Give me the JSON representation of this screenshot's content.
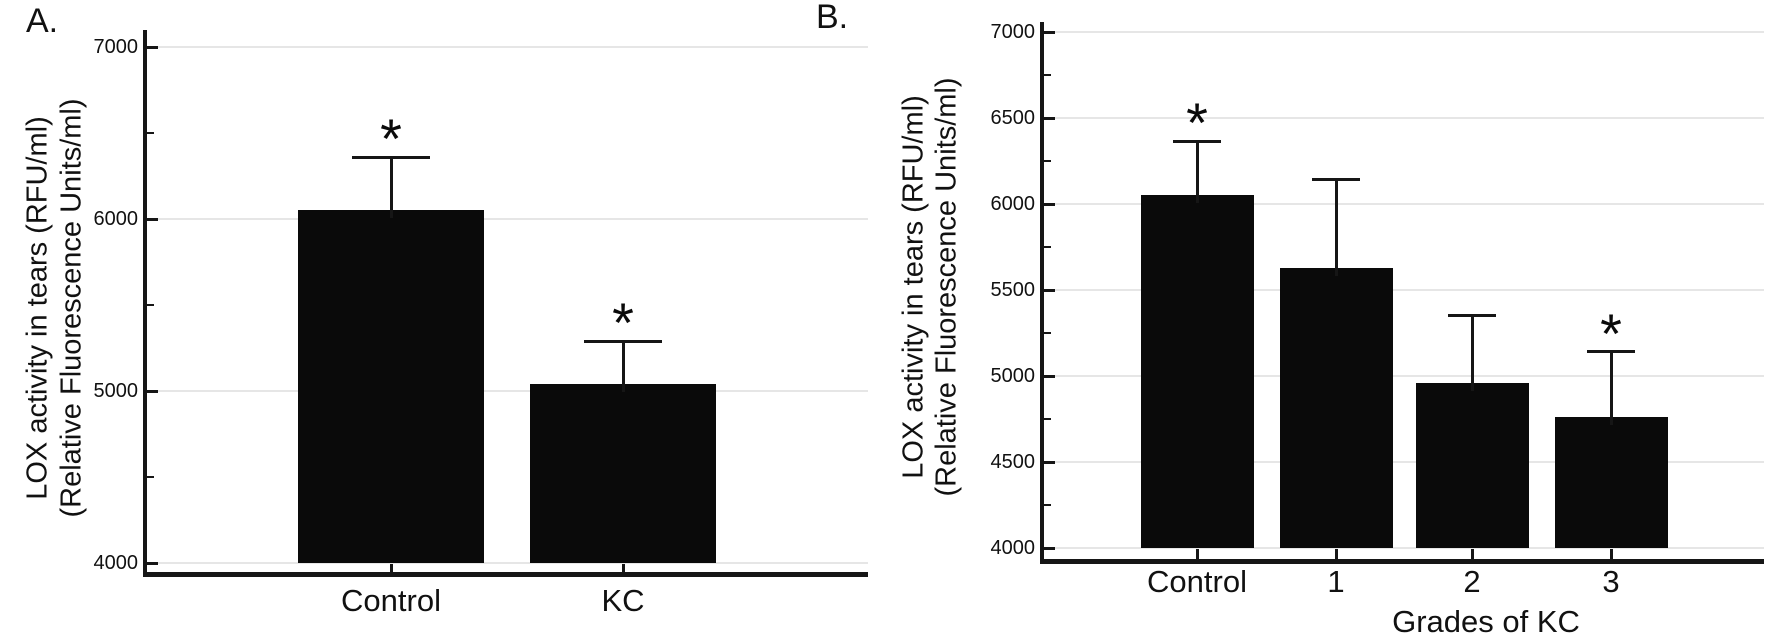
{
  "colors": {
    "background": "#ffffff",
    "bar": "#0a0a0a",
    "axis": "#161616",
    "grid": "#e6e6e6",
    "text": "#111111"
  },
  "chart_data": [
    {
      "type": "bar",
      "panel_label": "A.",
      "ylabel_line1": "LOX activity in tears (RFU/ml)",
      "ylabel_line2": "(Relative Fluorescence Units/ml)",
      "xlabel": "",
      "categories": [
        "Control",
        "KC"
      ],
      "values": [
        6050,
        5040
      ],
      "error_bar_tops": [
        6360,
        5290
      ],
      "significance": [
        "*",
        "*"
      ],
      "ylim": [
        4000,
        7100
      ],
      "yticks": [
        4000,
        5000,
        6000,
        7000
      ],
      "yticks_minor": [
        4500,
        5500,
        6500
      ],
      "grid": "major-horizontal",
      "legend": null,
      "bar_color": "#0a0a0a"
    },
    {
      "type": "bar",
      "panel_label": "B.",
      "ylabel_line1": "LOX activity in tears (RFU/ml)",
      "ylabel_line2": "(Relative Fluorescence Units/ml)",
      "xlabel": "Grades of KC",
      "categories": [
        "Control",
        "1",
        "2",
        "3"
      ],
      "values": [
        6050,
        5630,
        4960,
        4760
      ],
      "error_bar_tops": [
        6365,
        6140,
        5350,
        5140
      ],
      "significance": [
        "*",
        "",
        "",
        "*"
      ],
      "ylim": [
        4000,
        7060
      ],
      "yticks": [
        4000,
        4500,
        5000,
        5500,
        6000,
        6500,
        7000
      ],
      "yticks_minor": [
        4250,
        4750,
        5250,
        5750,
        6250,
        6750
      ],
      "grid": "major-horizontal",
      "legend": null,
      "bar_color": "#0a0a0a"
    }
  ]
}
